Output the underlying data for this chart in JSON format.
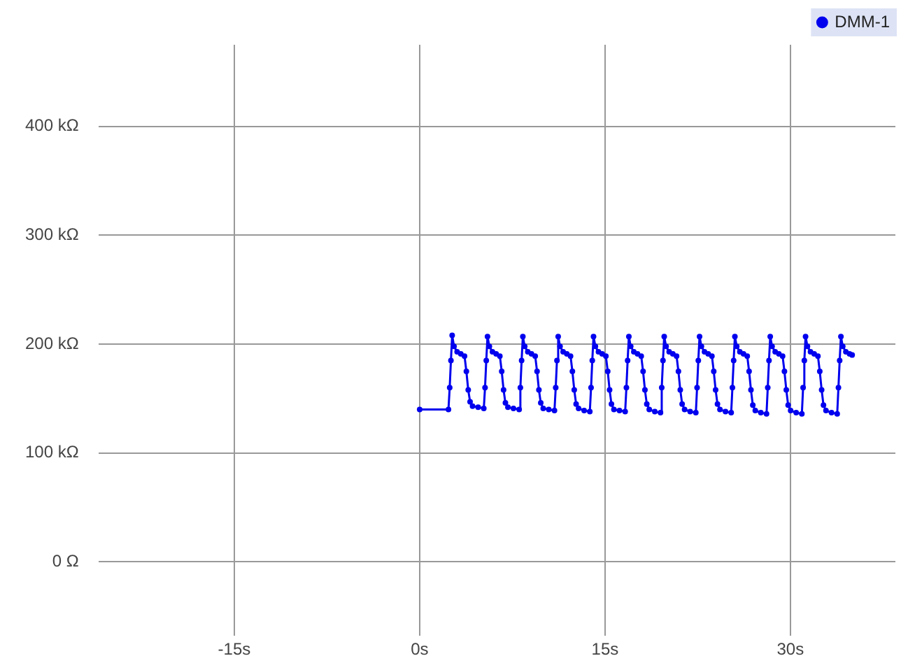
{
  "chart_data": {
    "type": "line",
    "marker": "circle",
    "line_style": "solid",
    "grid": true,
    "legend": "top right",
    "xlim": [
      -26,
      38.5
    ],
    "ylim": [
      -68,
      475
    ],
    "xticks": [
      {
        "value": -15,
        "label": "-15s"
      },
      {
        "value": 0,
        "label": "0s"
      },
      {
        "value": 15,
        "label": "15s"
      },
      {
        "value": 30,
        "label": "30s"
      }
    ],
    "yticks": [
      {
        "value": 0,
        "label": "0 Ω"
      },
      {
        "value": 100,
        "label": "100 kΩ"
      },
      {
        "value": 200,
        "label": "200 kΩ"
      },
      {
        "value": 300,
        "label": "300 kΩ"
      },
      {
        "value": 400,
        "label": "400 kΩ"
      }
    ],
    "series": [
      {
        "name": "DMM-1",
        "color": "#0000ee",
        "x": [
          0,
          2.33,
          2.43,
          2.53,
          2.63,
          2.78,
          3.03,
          3.33,
          3.63,
          3.78,
          3.93,
          4.08,
          4.28,
          4.73,
          5.19,
          5.29,
          5.39,
          5.49,
          5.64,
          5.89,
          6.19,
          6.49,
          6.64,
          6.79,
          6.94,
          7.14,
          7.59,
          8.05,
          8.15,
          8.25,
          8.35,
          8.5,
          8.75,
          9.05,
          9.35,
          9.5,
          9.65,
          9.8,
          10.0,
          10.45,
          10.91,
          11.01,
          11.11,
          11.21,
          11.36,
          11.61,
          11.91,
          12.21,
          12.36,
          12.51,
          12.66,
          12.86,
          13.31,
          13.77,
          13.87,
          13.97,
          14.07,
          14.22,
          14.47,
          14.77,
          15.07,
          15.22,
          15.37,
          15.52,
          15.72,
          16.17,
          16.63,
          16.73,
          16.83,
          16.93,
          17.08,
          17.33,
          17.63,
          17.93,
          18.08,
          18.23,
          18.38,
          18.58,
          19.03,
          19.49,
          19.59,
          19.69,
          19.79,
          19.94,
          20.19,
          20.49,
          20.79,
          20.94,
          21.09,
          21.24,
          21.44,
          21.89,
          22.35,
          22.45,
          22.55,
          22.65,
          22.8,
          23.05,
          23.35,
          23.65,
          23.8,
          23.95,
          24.1,
          24.3,
          24.75,
          25.21,
          25.31,
          25.41,
          25.51,
          25.66,
          25.91,
          26.21,
          26.51,
          26.66,
          26.81,
          26.96,
          27.16,
          27.61,
          28.07,
          28.17,
          28.27,
          28.37,
          28.52,
          28.77,
          29.07,
          29.37,
          29.52,
          29.67,
          29.82,
          30.02,
          30.47,
          30.93,
          31.03,
          31.13,
          31.23,
          31.38,
          31.63,
          31.93,
          32.23,
          32.38,
          32.53,
          32.68,
          32.88,
          33.33,
          33.79,
          33.89,
          33.99,
          34.09,
          34.24,
          34.49,
          34.79,
          35.0
        ],
        "values": [
          140,
          140,
          160,
          185,
          208,
          198,
          193,
          191,
          189,
          175,
          158,
          147,
          143,
          142,
          141,
          160,
          185,
          207,
          198,
          193,
          191,
          189,
          175,
          158,
          146,
          142,
          141,
          140,
          160,
          185,
          207,
          198,
          193,
          191,
          189,
          175,
          158,
          146,
          141,
          140,
          139,
          160,
          185,
          207,
          198,
          193,
          191,
          189,
          175,
          158,
          145,
          141,
          139,
          138,
          160,
          185,
          207,
          198,
          193,
          191,
          189,
          175,
          158,
          145,
          140,
          139,
          138,
          160,
          185,
          207,
          198,
          193,
          191,
          189,
          175,
          158,
          145,
          140,
          138,
          137,
          160,
          185,
          207,
          198,
          193,
          191,
          189,
          175,
          158,
          145,
          140,
          138,
          137,
          160,
          185,
          207,
          198,
          193,
          191,
          189,
          175,
          158,
          145,
          140,
          138,
          137,
          160,
          185,
          207,
          198,
          193,
          191,
          189,
          175,
          158,
          144,
          139,
          137,
          136,
          160,
          185,
          207,
          198,
          193,
          191,
          189,
          175,
          158,
          144,
          139,
          137,
          136,
          160,
          185,
          207,
          198,
          193,
          191,
          189,
          175,
          158,
          144,
          139,
          137,
          136,
          160,
          185,
          207,
          198,
          193,
          191,
          190
        ]
      }
    ]
  }
}
